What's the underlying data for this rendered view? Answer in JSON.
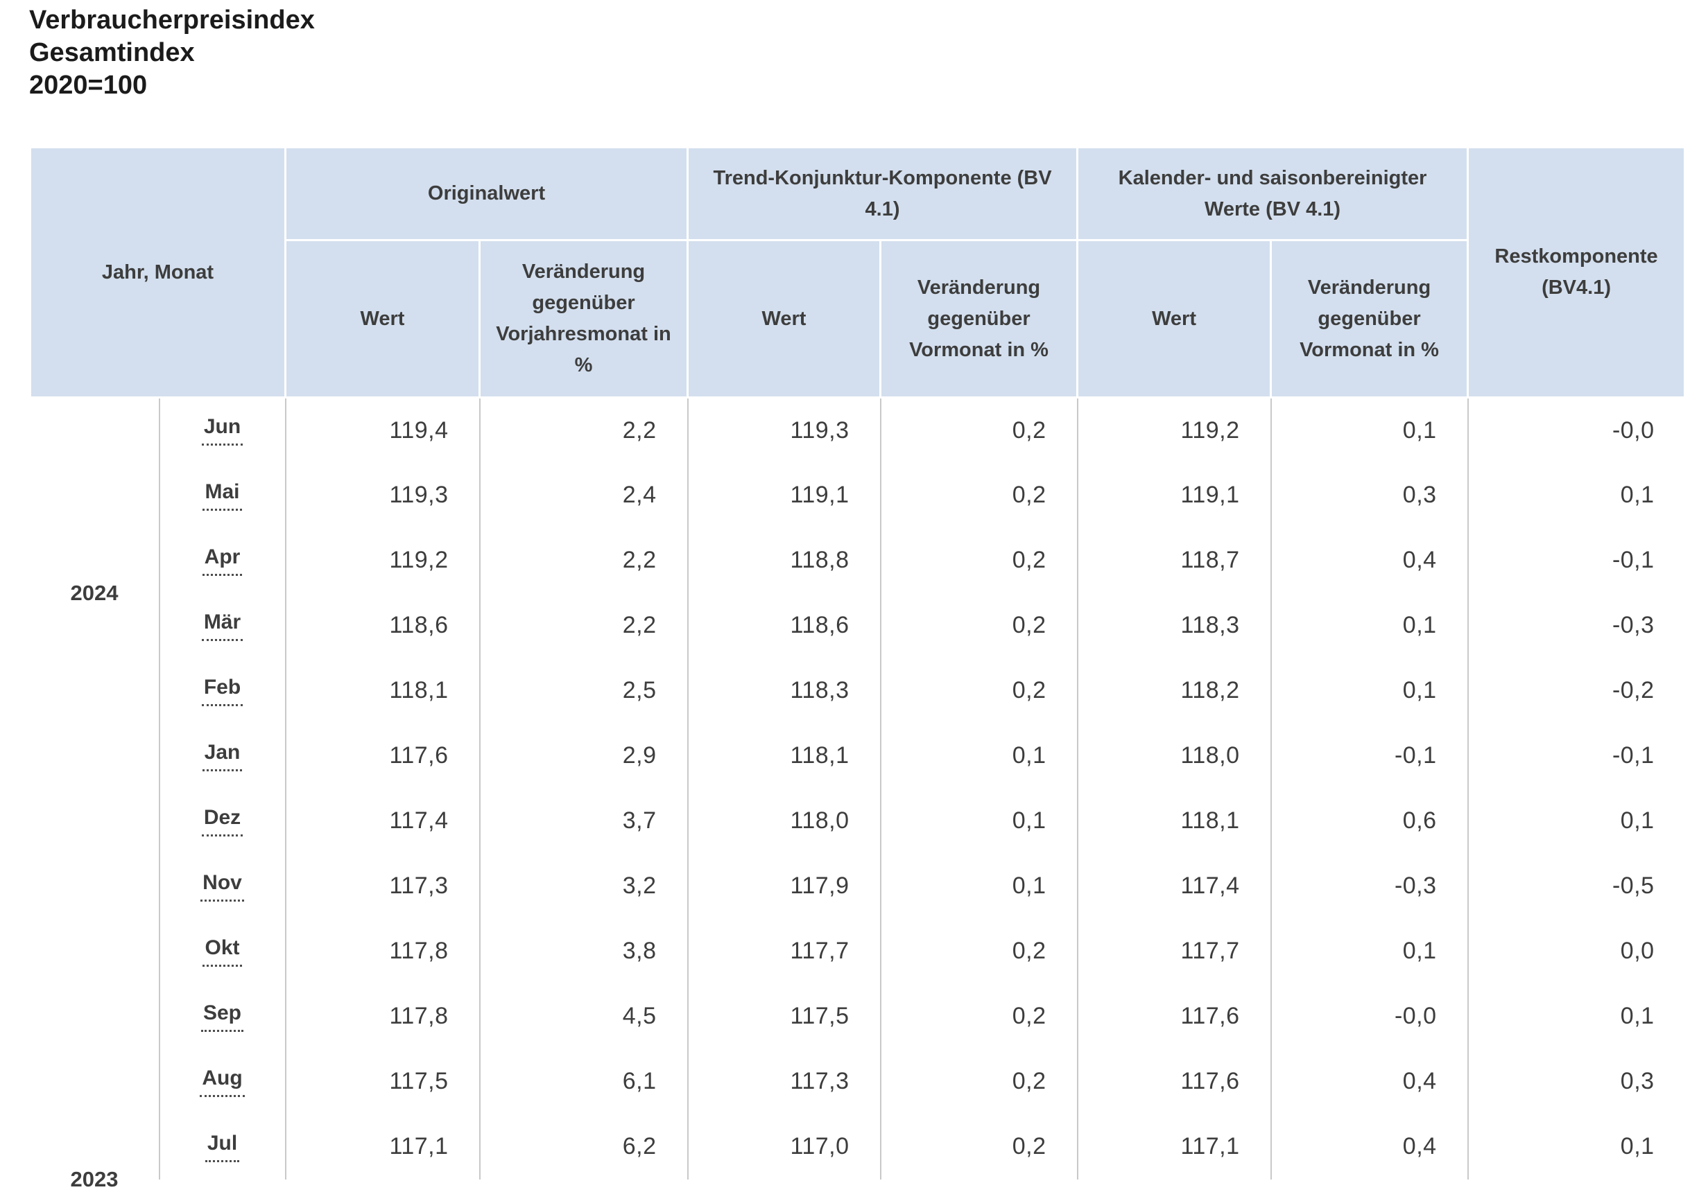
{
  "colors": {
    "header_bg": "#d3dfee",
    "grid_line": "#c9c9c9",
    "text": "#3d3d3d"
  },
  "title": {
    "line1": "Verbraucherpreisindex",
    "line2": "Gesamtindex",
    "line3": "2020=100"
  },
  "table": {
    "header": {
      "jahr_monat": "Jahr, Monat",
      "groups": [
        {
          "label": "Originalwert",
          "sub": [
            "Wert",
            "Veränderung gegenüber Vorjahresmonat in %"
          ]
        },
        {
          "label": "Trend-Konjunktur-Komponente (BV 4.1)",
          "sub": [
            "Wert",
            "Veränderung gegenüber Vormonat in %"
          ]
        },
        {
          "label": "Kalender- und saisonbereinigter Werte (BV 4.1)",
          "sub": [
            "Wert",
            "Veränderung gegenüber Vormonat in %"
          ]
        }
      ],
      "rest": "Restkomponente (BV4.1)"
    },
    "groups": [
      {
        "year": "2024",
        "rows": [
          {
            "month": "Jun",
            "values": [
              "119,4",
              "2,2",
              "119,3",
              "0,2",
              "119,2",
              "0,1",
              "-0,0"
            ]
          },
          {
            "month": "Mai",
            "values": [
              "119,3",
              "2,4",
              "119,1",
              "0,2",
              "119,1",
              "0,3",
              "0,1"
            ]
          },
          {
            "month": "Apr",
            "values": [
              "119,2",
              "2,2",
              "118,8",
              "0,2",
              "118,7",
              "0,4",
              "-0,1"
            ]
          },
          {
            "month": "Mär",
            "values": [
              "118,6",
              "2,2",
              "118,6",
              "0,2",
              "118,3",
              "0,1",
              "-0,3"
            ]
          },
          {
            "month": "Feb",
            "values": [
              "118,1",
              "2,5",
              "118,3",
              "0,2",
              "118,2",
              "0,1",
              "-0,2"
            ]
          },
          {
            "month": "Jan",
            "values": [
              "117,6",
              "2,9",
              "118,1",
              "0,1",
              "118,0",
              "-0,1",
              "-0,1"
            ]
          }
        ]
      },
      {
        "year": "2023",
        "rows": [
          {
            "month": "Dez",
            "values": [
              "117,4",
              "3,7",
              "118,0",
              "0,1",
              "118,1",
              "0,6",
              "0,1"
            ]
          },
          {
            "month": "Nov",
            "values": [
              "117,3",
              "3,2",
              "117,9",
              "0,1",
              "117,4",
              "-0,3",
              "-0,5"
            ]
          },
          {
            "month": "Okt",
            "values": [
              "117,8",
              "3,8",
              "117,7",
              "0,2",
              "117,7",
              "0,1",
              "0,0"
            ]
          },
          {
            "month": "Sep",
            "values": [
              "117,8",
              "4,5",
              "117,5",
              "0,2",
              "117,6",
              "-0,0",
              "0,1"
            ]
          },
          {
            "month": "Aug",
            "values": [
              "117,5",
              "6,1",
              "117,3",
              "0,2",
              "117,6",
              "0,4",
              "0,3"
            ]
          },
          {
            "month": "Jul",
            "values": [
              "117,1",
              "6,2",
              "117,0",
              "0,2",
              "117,1",
              "0,4",
              "0,1"
            ]
          }
        ]
      }
    ]
  }
}
